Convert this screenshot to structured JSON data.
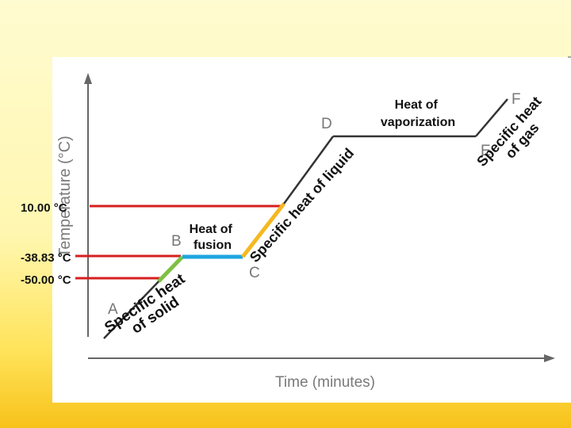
{
  "title": "",
  "axes": {
    "y_label": "Temperature (°C)",
    "x_label": "Time (minutes)"
  },
  "points": [
    "A",
    "B",
    "C",
    "D",
    "E",
    "F"
  ],
  "temperature_markers": [
    "10.00 °C",
    "-38.83 °C",
    "-50.00 °C"
  ],
  "segments": [
    {
      "label": "Specific heat of solid",
      "color": "#7dc142"
    },
    {
      "label": "Heat of fusion",
      "color": "#1ea5e0"
    },
    {
      "label": "Specific heat of liquid",
      "color": "#f5b820"
    },
    {
      "label": "Heat of vaporization",
      "color": "#333333"
    },
    {
      "label": "Specific heat of gas",
      "color": "#333333"
    }
  ],
  "rotated_text": {
    "solid": [
      "Specific heat",
      "of solid"
    ],
    "liquid": [
      "Specific heat of liquid"
    ],
    "gas": [
      "Specific heat",
      "of gas"
    ]
  },
  "text_labels": {
    "fusion": [
      "Heat of",
      "fusion"
    ],
    "vaporization": [
      "Heat of",
      "vaporization"
    ]
  },
  "colors": {
    "marker_line": "#d61f1f",
    "curve": "#333333"
  }
}
